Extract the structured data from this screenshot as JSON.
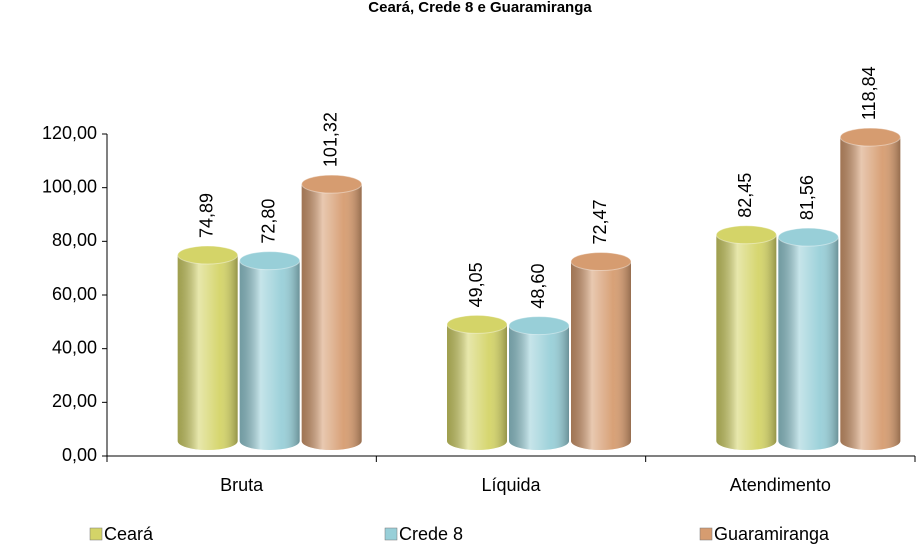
{
  "chart_data": {
    "type": "bar",
    "title": "Ceará, Crede 8 e Guaramiranga",
    "categories": [
      "Bruta",
      "Líquida",
      "Atendimento"
    ],
    "series": [
      {
        "name": "Ceará",
        "color": "#d4d468",
        "values": [
          74.89,
          49.05,
          82.45
        ],
        "value_labels": [
          "74,89",
          "49,05",
          "82,45"
        ]
      },
      {
        "name": "Crede 8",
        "color": "#98cfd8",
        "values": [
          72.8,
          48.6,
          81.56
        ],
        "value_labels": [
          "72,80",
          "48,60",
          "81,56"
        ]
      },
      {
        "name": "Guaramiranga",
        "color": "#d69c70",
        "values": [
          101.32,
          72.47,
          118.84
        ],
        "value_labels": [
          "101,32",
          "72,47",
          "118,84"
        ]
      }
    ],
    "ylim": [
      0,
      120
    ],
    "yticks": [
      {
        "value": 0,
        "label": "0,00"
      },
      {
        "value": 20,
        "label": "20,00"
      },
      {
        "value": 40,
        "label": "40,00"
      },
      {
        "value": 60,
        "label": "60,00"
      },
      {
        "value": 80,
        "label": "80,00"
      },
      {
        "value": 100,
        "label": "100,00"
      },
      {
        "value": 120,
        "label": "120,00"
      }
    ],
    "legend": "bottom"
  }
}
